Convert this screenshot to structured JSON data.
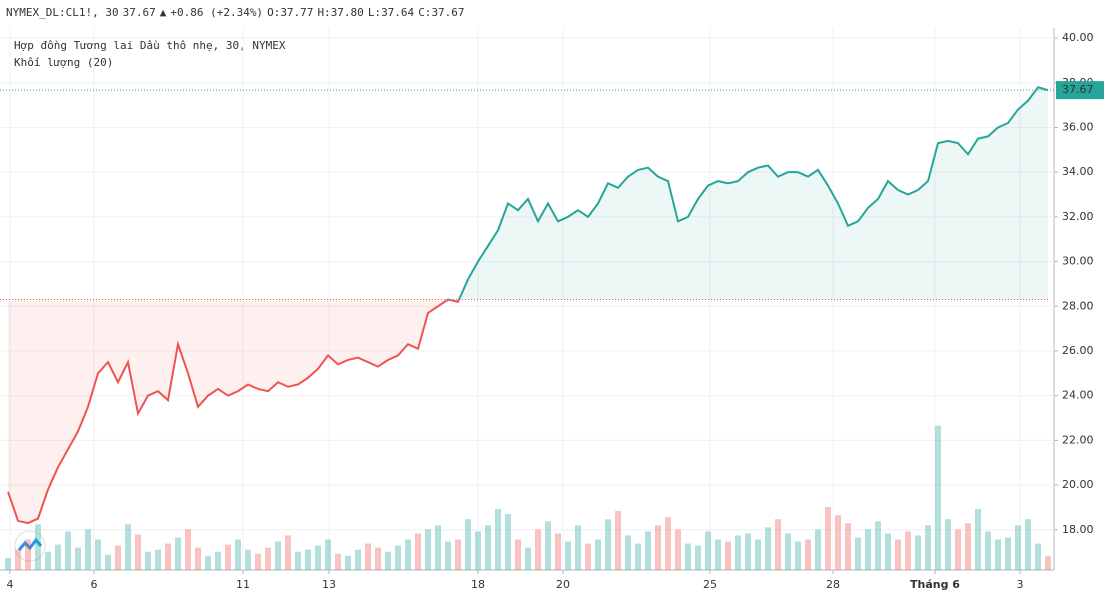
{
  "header": {
    "symbol": "NYMEX_DL:CL1!, 30",
    "last": "37.67",
    "arrow": "▲",
    "change": "+0.86 (+2.34%)",
    "ohlc": [
      {
        "label": "O:",
        "value": "37.77"
      },
      {
        "label": "H:",
        "value": "37.80"
      },
      {
        "label": "L:",
        "value": "37.64"
      },
      {
        "label": "C:",
        "value": "37.67"
      }
    ]
  },
  "legend": {
    "title": "Hợp đồng Tương lai Dầu thô nhẹ, 30, NYMEX",
    "volume": "Khối lượng (20)"
  },
  "chart_data": {
    "type": "line",
    "xlim": [
      0,
      104
    ],
    "xticks": [
      {
        "value": 0.2,
        "label": "4"
      },
      {
        "value": 8.6,
        "label": "6"
      },
      {
        "value": 23.5,
        "label": "11"
      },
      {
        "value": 32.1,
        "label": "13"
      },
      {
        "value": 47,
        "label": "18"
      },
      {
        "value": 55.5,
        "label": "20"
      },
      {
        "value": 70.2,
        "label": "25"
      },
      {
        "value": 82.5,
        "label": "28"
      },
      {
        "value": 92.7,
        "label": "Tháng 6"
      },
      {
        "value": 101.2,
        "label": "3"
      }
    ],
    "ylim": [
      16.2,
      40.45
    ],
    "yticks": [
      {
        "value": 18,
        "label": "18.00"
      },
      {
        "value": 20,
        "label": "20.00"
      },
      {
        "value": 22,
        "label": "22.00"
      },
      {
        "value": 24,
        "label": "24.00"
      },
      {
        "value": 26,
        "label": "26.00"
      },
      {
        "value": 28,
        "label": "28.00"
      },
      {
        "value": 30,
        "label": "30.00"
      },
      {
        "value": 32,
        "label": "32.00"
      },
      {
        "value": 34,
        "label": "34.00"
      },
      {
        "value": 36,
        "label": "36.00"
      },
      {
        "value": 38,
        "label": "38.00"
      },
      {
        "value": 40,
        "label": "40.00"
      }
    ],
    "grid": true,
    "baseline": 28.3,
    "up_color": "#26a69a",
    "down_color": "#ef5350",
    "series": [
      {
        "name": "Hợp đồng Tương lai Dầu thô nhẹ, 30, NYMEX",
        "values": [
          19.7,
          18.4,
          18.3,
          18.5,
          19.8,
          20.8,
          21.6,
          22.4,
          23.5,
          25.0,
          25.5,
          24.6,
          25.5,
          23.2,
          24.0,
          24.2,
          23.8,
          26.3,
          25.0,
          23.5,
          24.0,
          24.3,
          24.0,
          24.2,
          24.5,
          24.3,
          24.2,
          24.6,
          24.4,
          24.5,
          24.8,
          25.2,
          25.8,
          25.4,
          25.6,
          25.7,
          25.5,
          25.3,
          25.6,
          25.8,
          26.3,
          26.1,
          27.7,
          28.0,
          28.3,
          28.2,
          29.2,
          30.0,
          30.7,
          31.4,
          32.6,
          32.3,
          32.8,
          31.8,
          32.6,
          31.8,
          32.0,
          32.3,
          32.0,
          32.6,
          33.5,
          33.3,
          33.8,
          34.1,
          34.2,
          33.8,
          33.6,
          31.8,
          32.0,
          32.8,
          33.4,
          33.6,
          33.5,
          33.6,
          34.0,
          34.2,
          34.3,
          33.8,
          34.0,
          34.0,
          33.8,
          34.1,
          33.4,
          32.6,
          31.6,
          31.8,
          32.4,
          32.8,
          33.6,
          33.2,
          33.0,
          33.2,
          33.6,
          35.3,
          35.4,
          35.3,
          34.8,
          35.5,
          35.6,
          36.0,
          36.2,
          36.8,
          37.2,
          37.8,
          37.67
        ]
      },
      {
        "name": "Khối lượng (20)",
        "axis": "volume",
        "vlim": [
          0,
          160
        ],
        "values": [
          12,
          20,
          30,
          45,
          18,
          25,
          38,
          22,
          40,
          30,
          15,
          24,
          45,
          35,
          18,
          20,
          26,
          32,
          40,
          22,
          14,
          18,
          25,
          30,
          20,
          16,
          22,
          28,
          34,
          18,
          20,
          24,
          30,
          16,
          14,
          20,
          26,
          22,
          18,
          24,
          30,
          36,
          40,
          44,
          28,
          30,
          50,
          38,
          44,
          60,
          55,
          30,
          22,
          40,
          48,
          36,
          28,
          44,
          26,
          30,
          50,
          58,
          34,
          26,
          38,
          44,
          52,
          40,
          26,
          24,
          38,
          30,
          28,
          34,
          36,
          30,
          42,
          50,
          36,
          28,
          30,
          40,
          62,
          54,
          46,
          32,
          40,
          48,
          36,
          30,
          38,
          34,
          44,
          142,
          50,
          40,
          46,
          60,
          38,
          30,
          32,
          44,
          50,
          26,
          14
        ]
      }
    ]
  }
}
